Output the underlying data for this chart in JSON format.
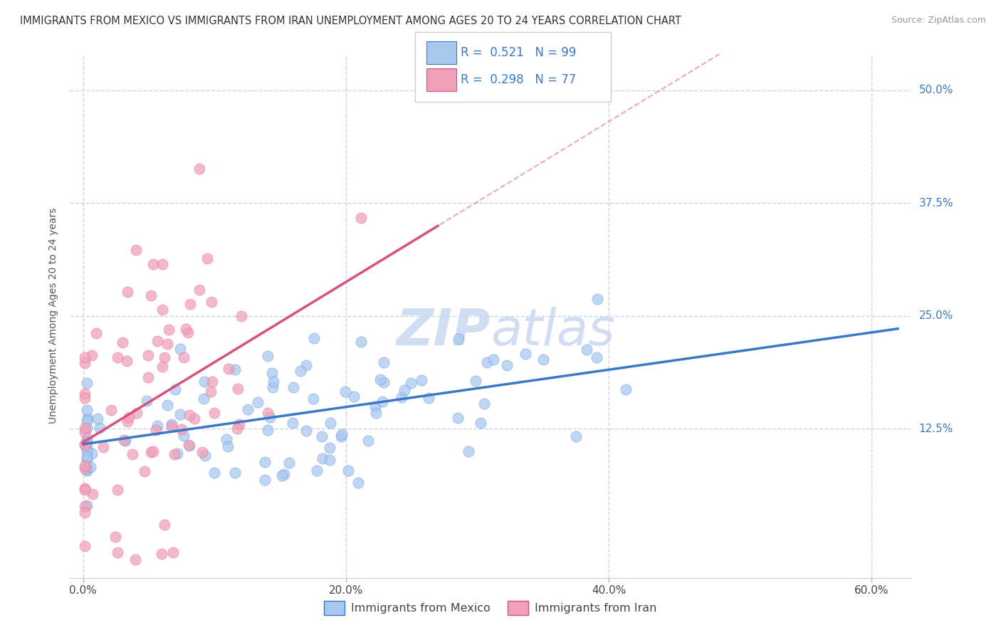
{
  "title": "IMMIGRANTS FROM MEXICO VS IMMIGRANTS FROM IRAN UNEMPLOYMENT AMONG AGES 20 TO 24 YEARS CORRELATION CHART",
  "source": "Source: ZipAtlas.com",
  "ylabel": "Unemployment Among Ages 20 to 24 years",
  "x_tick_labels": [
    "0.0%",
    "20.0%",
    "40.0%",
    "60.0%"
  ],
  "x_tick_values": [
    0,
    20,
    40,
    60
  ],
  "y_tick_labels": [
    "12.5%",
    "25.0%",
    "37.5%",
    "50.0%"
  ],
  "y_tick_values": [
    12.5,
    25.0,
    37.5,
    50.0
  ],
  "xlim": [
    -1,
    63
  ],
  "ylim": [
    -4,
    54
  ],
  "legend_label_1": "Immigrants from Mexico",
  "legend_label_2": "Immigrants from Iran",
  "R1": 0.521,
  "N1": 99,
  "R2": 0.298,
  "N2": 77,
  "color_mexico": "#a8c8f0",
  "color_iran": "#f0a0b8",
  "color_trendline_mexico": "#3a78c9",
  "color_trendline_iran": "#d85080",
  "background_color": "#ffffff",
  "grid_color": "#c8d4e8",
  "watermark_color": "#c8d8f0",
  "title_fontsize": 10.5,
  "source_fontsize": 9,
  "axis_label_fontsize": 10,
  "tick_fontsize": 11,
  "legend_fontsize": 12
}
